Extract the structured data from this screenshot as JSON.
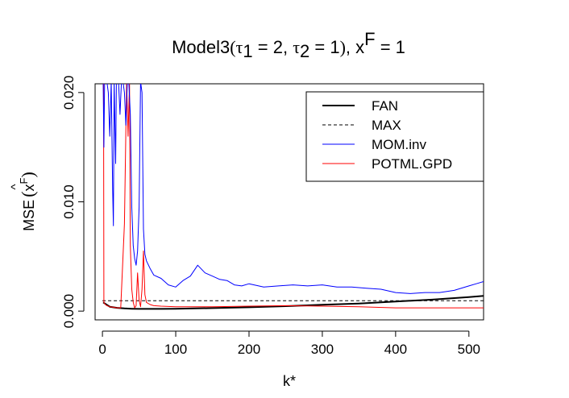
{
  "chart_data": {
    "type": "line",
    "title": {
      "prefix": "Model3",
      "open_paren": "(",
      "tau": "τ",
      "sub1": "1",
      "eq1": " = 2, ",
      "sub2": "2",
      "eq2": " = 1",
      "close_paren": ")",
      "comma_x": ", x",
      "sup": "F",
      "eq3": " = 1"
    },
    "xlabel": "k*",
    "ylabel": {
      "prefix": "MSE",
      "open_paren": "(",
      "hat": "^",
      "x": "x",
      "sup": "F",
      "close_paren": ")"
    },
    "xlim": [
      -10,
      520
    ],
    "ylim": [
      -0.0008,
      0.0208
    ],
    "xticks": [
      0,
      100,
      200,
      300,
      400,
      500
    ],
    "xtick_labels": [
      "0",
      "100",
      "200",
      "300",
      "400",
      "500"
    ],
    "yticks": [
      0.0,
      0.01,
      0.02
    ],
    "ytick_labels": [
      "0.000",
      "0.010",
      "0.020"
    ],
    "legend_position": "top-right",
    "legend": [
      {
        "name": "FAN",
        "color": "#000000",
        "dash": "solid",
        "width": 2
      },
      {
        "name": "MAX",
        "color": "#000000",
        "dash": "dashed",
        "width": 1
      },
      {
        "name": "MOM.inv",
        "color": "#0000ff",
        "dash": "solid",
        "width": 1
      },
      {
        "name": "POTML.GPD",
        "color": "#ff0000",
        "dash": "solid",
        "width": 1
      }
    ],
    "series": [
      {
        "name": "MAX",
        "color": "#000000",
        "x": [
          0,
          520
        ],
        "y": [
          0.00095,
          0.00095
        ]
      },
      {
        "name": "FAN",
        "color": "#000000",
        "x": [
          1,
          10,
          20,
          30,
          40,
          50,
          60,
          80,
          100,
          150,
          200,
          250,
          300,
          350,
          400,
          450,
          500,
          520
        ],
        "y": [
          0.0008,
          0.0004,
          0.0003,
          0.00025,
          0.00022,
          0.0002,
          0.0002,
          0.0002,
          0.00022,
          0.00028,
          0.00035,
          0.00045,
          0.00058,
          0.0007,
          0.00088,
          0.00105,
          0.00128,
          0.0014
        ]
      },
      {
        "name": "POTML.GPD",
        "color": "#ff0000",
        "x": [
          1,
          1.5,
          2,
          3,
          4,
          6,
          10,
          15,
          20,
          25,
          30,
          33,
          35,
          37,
          38,
          40,
          42,
          44,
          46,
          48,
          50,
          52,
          54,
          56,
          58,
          60,
          65,
          70,
          80,
          100,
          150,
          200,
          250,
          300,
          350,
          400,
          450,
          500,
          520
        ],
        "y": [
          0.021,
          0.021,
          0.0008,
          0.0007,
          0.0006,
          0.0005,
          0.0004,
          0.00035,
          0.0003,
          0.0003,
          0.008,
          0.021,
          0.016,
          0.021,
          0.006,
          0.002,
          0.0008,
          0.0003,
          0.0005,
          0.0035,
          0.001,
          0.0004,
          0.002,
          0.0055,
          0.0015,
          0.0008,
          0.0006,
          0.0005,
          0.00045,
          0.0004,
          0.0004,
          0.00045,
          0.0005,
          0.00045,
          0.0004,
          0.0003,
          0.0003,
          0.0003,
          0.0003
        ]
      },
      {
        "name": "MOM.inv",
        "color": "#0000ff",
        "x": [
          1,
          2,
          3,
          4,
          6,
          8,
          10,
          12,
          14,
          15,
          16,
          18,
          19,
          20,
          22,
          24,
          26,
          28,
          30,
          32,
          34,
          36,
          38,
          40,
          42,
          44,
          46,
          48,
          50,
          52,
          54,
          56,
          58,
          60,
          65,
          70,
          80,
          90,
          100,
          110,
          120,
          130,
          140,
          150,
          160,
          170,
          180,
          190,
          200,
          220,
          240,
          260,
          280,
          300,
          320,
          340,
          360,
          380,
          400,
          420,
          440,
          460,
          480,
          500,
          510,
          520
        ],
        "y": [
          0.021,
          0.015,
          0.021,
          0.021,
          0.021,
          0.02,
          0.016,
          0.021,
          0.011,
          0.0078,
          0.021,
          0.0135,
          0.021,
          0.021,
          0.021,
          0.018,
          0.021,
          0.021,
          0.02,
          0.017,
          0.021,
          0.021,
          0.018,
          0.0095,
          0.006,
          0.0048,
          0.0042,
          0.0055,
          0.0095,
          0.021,
          0.02,
          0.0075,
          0.0052,
          0.0046,
          0.0039,
          0.0033,
          0.003,
          0.0024,
          0.0022,
          0.0028,
          0.0032,
          0.0042,
          0.0035,
          0.0032,
          0.0029,
          0.0028,
          0.0024,
          0.0023,
          0.0025,
          0.0022,
          0.0023,
          0.0024,
          0.0023,
          0.0024,
          0.0022,
          0.0022,
          0.0021,
          0.002,
          0.0017,
          0.0016,
          0.0017,
          0.0017,
          0.0019,
          0.0023,
          0.0025,
          0.0027
        ]
      }
    ]
  }
}
